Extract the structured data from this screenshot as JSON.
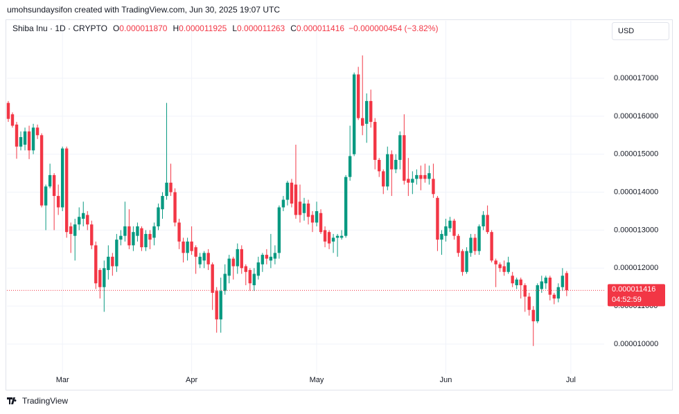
{
  "chart_data": {
    "type": "candlestick",
    "credit": "umohsundaysifon created with TradingView.com, Jun 30, 2025 19:07 UTC",
    "title": "Shiba Inu · 1D · CRYPTO",
    "ohlc_legend": [
      {
        "key": "O",
        "label": "0.000011870"
      },
      {
        "key": "H",
        "label": "0.000011925"
      },
      {
        "key": "L",
        "label": "0.000011263"
      },
      {
        "key": "C",
        "label": "0.000011416"
      }
    ],
    "change": "−0.000000454 (−3.82%)",
    "currency": "USD",
    "last_price_label": "0.000011416",
    "countdown": "04:52:59",
    "brand": "TradingView",
    "up_color": "#089981",
    "down_color": "#f23645",
    "grid": true,
    "xlim": [
      -0.33,
      143
    ],
    "xticks": [
      {
        "value": 13,
        "label": "Mar"
      },
      {
        "value": 44,
        "label": "Apr"
      },
      {
        "value": 74,
        "label": "May"
      },
      {
        "value": 105,
        "label": "Jun"
      },
      {
        "value": 135,
        "label": "Jul"
      }
    ],
    "ylim": [
      8.852e-06,
      1.8057e-05
    ],
    "yticks": [
      {
        "value": 1e-05,
        "label": "0.000010000"
      },
      {
        "value": 1.1e-05,
        "label": "0.000011000"
      },
      {
        "value": 1.2e-05,
        "label": "0.000012000"
      },
      {
        "value": 1.3e-05,
        "label": "0.000013000"
      },
      {
        "value": 1.4e-05,
        "label": "0.000014000"
      },
      {
        "value": 1.5e-05,
        "label": "0.000015000"
      },
      {
        "value": 1.6e-05,
        "label": "0.000016000"
      },
      {
        "value": 1.7e-05,
        "label": "0.000017000"
      }
    ],
    "open": [
      1.635e-05,
      1.605e-05,
      1.578e-05,
      1.52e-05,
      1.525e-05,
      1.56e-05,
      1.51e-05,
      1.57e-05,
      1.55e-05,
      1.365e-05,
      1.415e-05,
      1.445e-05,
      1.39e-05,
      1.36e-05,
      1.515e-05,
      1.31e-05,
      1.285e-05,
      1.315e-05,
      1.33e-05,
      1.34e-05,
      1.315e-05,
      1.26e-05,
      1.195e-05,
      1.15e-05,
      1.195e-05,
      1.23e-05,
      1.205e-05,
      1.275e-05,
      1.285e-05,
      1.31e-05,
      1.26e-05,
      1.285e-05,
      1.305e-05,
      1.255e-05,
      1.29e-05,
      1.28e-05,
      1.31e-05,
      1.355e-05,
      1.39e-05,
      1.425e-05,
      1.4e-05,
      1.32e-05,
      1.27e-05,
      1.24e-05,
      1.27e-05,
      1.255e-05,
      1.21e-05,
      1.22e-05,
      1.24e-05,
      1.21e-05,
      1.14e-05,
      1.065e-05,
      1.14e-05,
      1.18e-05,
      1.225e-05,
      1.205e-05,
      1.25e-05,
      1.205e-05,
      1.195e-05,
      1.155e-05,
      1.18e-05,
      1.21e-05,
      1.235e-05,
      1.22e-05,
      1.225e-05,
      1.24e-05,
      1.36e-05,
      1.38e-05,
      1.425e-05,
      1.42e-05,
      1.375e-05,
      1.345e-05,
      1.37e-05,
      1.34e-05,
      1.32e-05,
      1.345e-05,
      1.3e-05,
      1.295e-05,
      1.27e-05,
      1.28e-05,
      1.28e-05,
      1.285e-05,
      1.44e-05,
      1.5e-05,
      1.71e-05,
      1.595e-05,
      1.58e-05,
      1.64e-05,
      1.585e-05,
      1.485e-05,
      1.455e-05,
      1.415e-05,
      1.5e-05,
      1.46e-05,
      1.485e-05,
      1.55e-05,
      1.435e-05,
      1.425e-05,
      1.435e-05,
      1.445e-05,
      1.445e-05,
      1.435e-05,
      1.435e-05,
      1.385e-05,
      1.275e-05,
      1.285e-05,
      1.305e-05,
      1.325e-05,
      1.285e-05,
      1.245e-05,
      1.19e-05,
      1.24e-05,
      1.28e-05,
      1.245e-05,
      1.31e-05,
      1.34e-05,
      1.295e-05,
      1.22e-05,
      1.21e-05,
      1.205e-05,
      1.19e-05,
      1.18e-05,
      1.155e-05,
      1.17e-05,
      1.155e-05,
      1.125e-05,
      1.09e-05,
      1.06e-05,
      1.145e-05,
      1.16e-05,
      1.175e-05,
      1.13e-05,
      1.12e-05,
      1.15e-05,
      1.187e-05
    ],
    "high": [
      1.64e-05,
      1.61e-05,
      1.585e-05,
      1.56e-05,
      1.57e-05,
      1.575e-05,
      1.58e-05,
      1.578e-05,
      1.555e-05,
      1.42e-05,
      1.475e-05,
      1.45e-05,
      1.42e-05,
      1.52e-05,
      1.52e-05,
      1.32e-05,
      1.33e-05,
      1.36e-05,
      1.375e-05,
      1.35e-05,
      1.325e-05,
      1.27e-05,
      1.2e-05,
      1.22e-05,
      1.26e-05,
      1.24e-05,
      1.29e-05,
      1.3e-05,
      1.375e-05,
      1.355e-05,
      1.31e-05,
      1.32e-05,
      1.31e-05,
      1.3e-05,
      1.3e-05,
      1.32e-05,
      1.37e-05,
      1.4e-05,
      1.635e-05,
      1.475e-05,
      1.41e-05,
      1.33e-05,
      1.28e-05,
      1.28e-05,
      1.31e-05,
      1.26e-05,
      1.24e-05,
      1.245e-05,
      1.25e-05,
      1.215e-05,
      1.15e-05,
      1.175e-05,
      1.21e-05,
      1.235e-05,
      1.23e-05,
      1.265e-05,
      1.26e-05,
      1.21e-05,
      1.2e-05,
      1.2e-05,
      1.23e-05,
      1.24e-05,
      1.25e-05,
      1.29e-05,
      1.26e-05,
      1.365e-05,
      1.39e-05,
      1.43e-05,
      1.435e-05,
      1.525e-05,
      1.42e-05,
      1.385e-05,
      1.38e-05,
      1.35e-05,
      1.375e-05,
      1.355e-05,
      1.31e-05,
      1.3e-05,
      1.29e-05,
      1.29e-05,
      1.3e-05,
      1.445e-05,
      1.575e-05,
      1.715e-05,
      1.73e-05,
      1.76e-05,
      1.66e-05,
      1.67e-05,
      1.595e-05,
      1.49e-05,
      1.46e-05,
      1.52e-05,
      1.51e-05,
      1.5e-05,
      1.56e-05,
      1.605e-05,
      1.49e-05,
      1.455e-05,
      1.46e-05,
      1.47e-05,
      1.475e-05,
      1.47e-05,
      1.475e-05,
      1.39e-05,
      1.3e-05,
      1.33e-05,
      1.335e-05,
      1.33e-05,
      1.29e-05,
      1.25e-05,
      1.255e-05,
      1.29e-05,
      1.29e-05,
      1.315e-05,
      1.35e-05,
      1.365e-05,
      1.3e-05,
      1.225e-05,
      1.215e-05,
      1.22e-05,
      1.23e-05,
      1.19e-05,
      1.175e-05,
      1.175e-05,
      1.16e-05,
      1.135e-05,
      1.1e-05,
      1.16e-05,
      1.18e-05,
      1.18e-05,
      1.18e-05,
      1.135e-05,
      1.16e-05,
      1.2e-05,
      1.1925e-05
    ],
    "low": [
      1.585e-05,
      1.57e-05,
      1.488e-05,
      1.51e-05,
      1.51e-05,
      1.487e-05,
      1.5e-05,
      1.54e-05,
      1.36e-05,
      1.3e-05,
      1.41e-05,
      1.3e-05,
      1.34e-05,
      1.35e-05,
      1.28e-05,
      1.24e-05,
      1.22e-05,
      1.3e-05,
      1.31e-05,
      1.3e-05,
      1.25e-05,
      1.145e-05,
      1.12e-05,
      1.085e-05,
      1.17e-05,
      1.18e-05,
      1.19e-05,
      1.26e-05,
      1.27e-05,
      1.25e-05,
      1.245e-05,
      1.27e-05,
      1.245e-05,
      1.245e-05,
      1.25e-05,
      1.26e-05,
      1.3e-05,
      1.33e-05,
      1.38e-05,
      1.39e-05,
      1.31e-05,
      1.25e-05,
      1.215e-05,
      1.22e-05,
      1.235e-05,
      1.185e-05,
      1.2e-05,
      1.2e-05,
      1.195e-05,
      1.09e-05,
      1.03e-05,
      1.03e-05,
      1.13e-05,
      1.16e-05,
      1.17e-05,
      1.185e-05,
      1.185e-05,
      1.155e-05,
      1.14e-05,
      1.14e-05,
      1.17e-05,
      1.19e-05,
      1.21e-05,
      1.2e-05,
      1.21e-05,
      1.225e-05,
      1.35e-05,
      1.365e-05,
      1.36e-05,
      1.33e-05,
      1.32e-05,
      1.325e-05,
      1.315e-05,
      1.295e-05,
      1.31e-05,
      1.29e-05,
      1.255e-05,
      1.25e-05,
      1.24e-05,
      1.23e-05,
      1.275e-05,
      1.28e-05,
      1.43e-05,
      1.495e-05,
      1.59e-05,
      1.55e-05,
      1.53e-05,
      1.57e-05,
      1.46e-05,
      1.44e-05,
      1.395e-05,
      1.405e-05,
      1.39e-05,
      1.45e-05,
      1.46e-05,
      1.42e-05,
      1.39e-05,
      1.395e-05,
      1.42e-05,
      1.405e-05,
      1.425e-05,
      1.42e-05,
      1.385e-05,
      1.245e-05,
      1.235e-05,
      1.27e-05,
      1.295e-05,
      1.275e-05,
      1.23e-05,
      1.18e-05,
      1.185e-05,
      1.23e-05,
      1.235e-05,
      1.235e-05,
      1.3e-05,
      1.29e-05,
      1.215e-05,
      1.15e-05,
      1.19e-05,
      1.18e-05,
      1.185e-05,
      1.15e-05,
      1.145e-05,
      1.12e-05,
      1.085e-05,
      1.075e-05,
      9.95e-06,
      1.055e-05,
      1.135e-05,
      1.145e-05,
      1.115e-05,
      1.105e-05,
      1.11e-05,
      1.14e-05,
      1.1263e-05
    ],
    "close": [
      1.593e-05,
      1.575e-05,
      1.52e-05,
      1.545e-05,
      1.56e-05,
      1.51e-05,
      1.57e-05,
      1.55e-05,
      1.365e-05,
      1.415e-05,
      1.445e-05,
      1.39e-05,
      1.36e-05,
      1.515e-05,
      1.295e-05,
      1.29e-05,
      1.315e-05,
      1.335e-05,
      1.345e-05,
      1.315e-05,
      1.26e-05,
      1.16e-05,
      1.15e-05,
      1.2e-05,
      1.23e-05,
      1.205e-05,
      1.275e-05,
      1.285e-05,
      1.31e-05,
      1.26e-05,
      1.295e-05,
      1.31e-05,
      1.255e-05,
      1.29e-05,
      1.275e-05,
      1.31e-05,
      1.36e-05,
      1.39e-05,
      1.425e-05,
      1.4e-05,
      1.32e-05,
      1.27e-05,
      1.24e-05,
      1.27e-05,
      1.245e-05,
      1.23e-05,
      1.23e-05,
      1.24e-05,
      1.21e-05,
      1.135e-05,
      1.065e-05,
      1.14e-05,
      1.185e-05,
      1.225e-05,
      1.205e-05,
      1.25e-05,
      1.2e-05,
      1.19e-05,
      1.16e-05,
      1.185e-05,
      1.215e-05,
      1.235e-05,
      1.225e-05,
      1.23e-05,
      1.24e-05,
      1.36e-05,
      1.38e-05,
      1.425e-05,
      1.37e-05,
      1.34e-05,
      1.34e-05,
      1.37e-05,
      1.335e-05,
      1.32e-05,
      1.35e-05,
      1.295e-05,
      1.27e-05,
      1.265e-05,
      1.28e-05,
      1.285e-05,
      1.285e-05,
      1.44e-05,
      1.495e-05,
      1.71e-05,
      1.595e-05,
      1.575e-05,
      1.64e-05,
      1.585e-05,
      1.485e-05,
      1.455e-05,
      1.415e-05,
      1.5e-05,
      1.46e-05,
      1.485e-05,
      1.55e-05,
      1.43e-05,
      1.425e-05,
      1.435e-05,
      1.445e-05,
      1.435e-05,
      1.435e-05,
      1.45e-05,
      1.395e-05,
      1.275e-05,
      1.29e-05,
      1.31e-05,
      1.325e-05,
      1.285e-05,
      1.24e-05,
      1.19e-05,
      1.245e-05,
      1.28e-05,
      1.245e-05,
      1.31e-05,
      1.34e-05,
      1.295e-05,
      1.22e-05,
      1.21e-05,
      1.2e-05,
      1.19e-05,
      1.215e-05,
      1.16e-05,
      1.17e-05,
      1.155e-05,
      1.125e-05,
      1.09e-05,
      1.06e-05,
      1.155e-05,
      1.165e-05,
      1.175e-05,
      1.13e-05,
      1.12e-05,
      1.15e-05,
      1.18e-05,
      1.1416e-05
    ]
  }
}
